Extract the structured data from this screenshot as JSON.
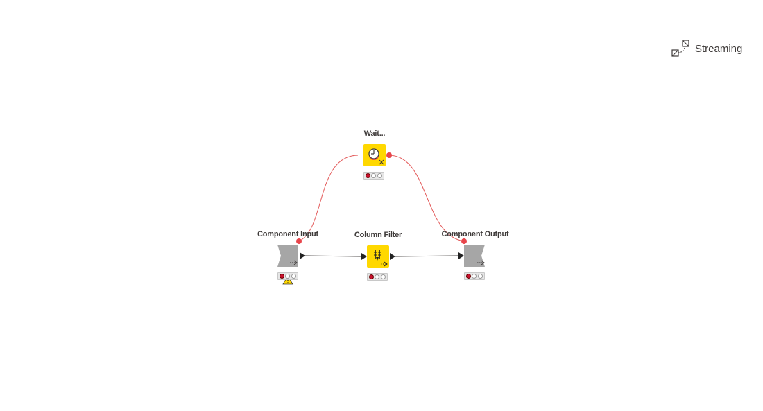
{
  "toolbar": {
    "streaming_label": "Streaming",
    "streaming_icon": "streaming-icon"
  },
  "nodes": {
    "wait": {
      "label": "Wait...",
      "color": "#ffd800",
      "status": "red",
      "icon": "clock-icon"
    },
    "component_input": {
      "label": "Component Input",
      "color": "#a6a6a6",
      "status": "red",
      "warning": true,
      "icon": "component-input-icon"
    },
    "column_filter": {
      "label": "Column Filter",
      "color": "#ffd800",
      "status": "red",
      "icon": "column-filter-icon"
    },
    "component_output": {
      "label": "Component Output",
      "color": "#a6a6a6",
      "status": "red",
      "icon": "component-output-icon"
    }
  },
  "colors": {
    "flow_variable_connection": "#e35a5a",
    "data_connection": "#3e3a39",
    "flow_port": "#e8454b"
  }
}
